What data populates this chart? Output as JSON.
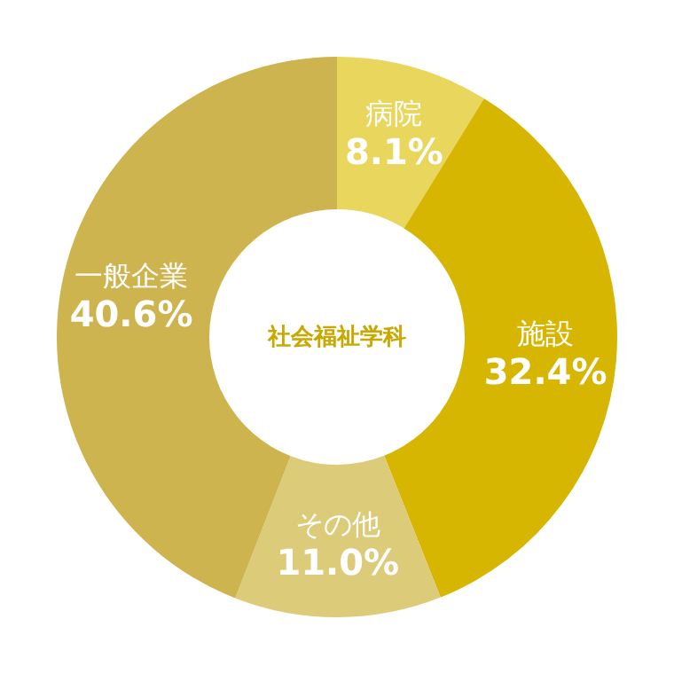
{
  "chart_data": {
    "type": "donut",
    "title": "社会福祉学科",
    "categories": [
      "病院",
      "施設",
      "その他",
      "一般企業"
    ],
    "values": [
      8.1,
      32.4,
      11.0,
      40.6
    ],
    "value_labels": [
      "8.1%",
      "32.4%",
      "11.0%",
      "40.6%"
    ],
    "colors": [
      "#e8d75c",
      "#d6b600",
      "#dccb78",
      "#ceb44f"
    ]
  }
}
